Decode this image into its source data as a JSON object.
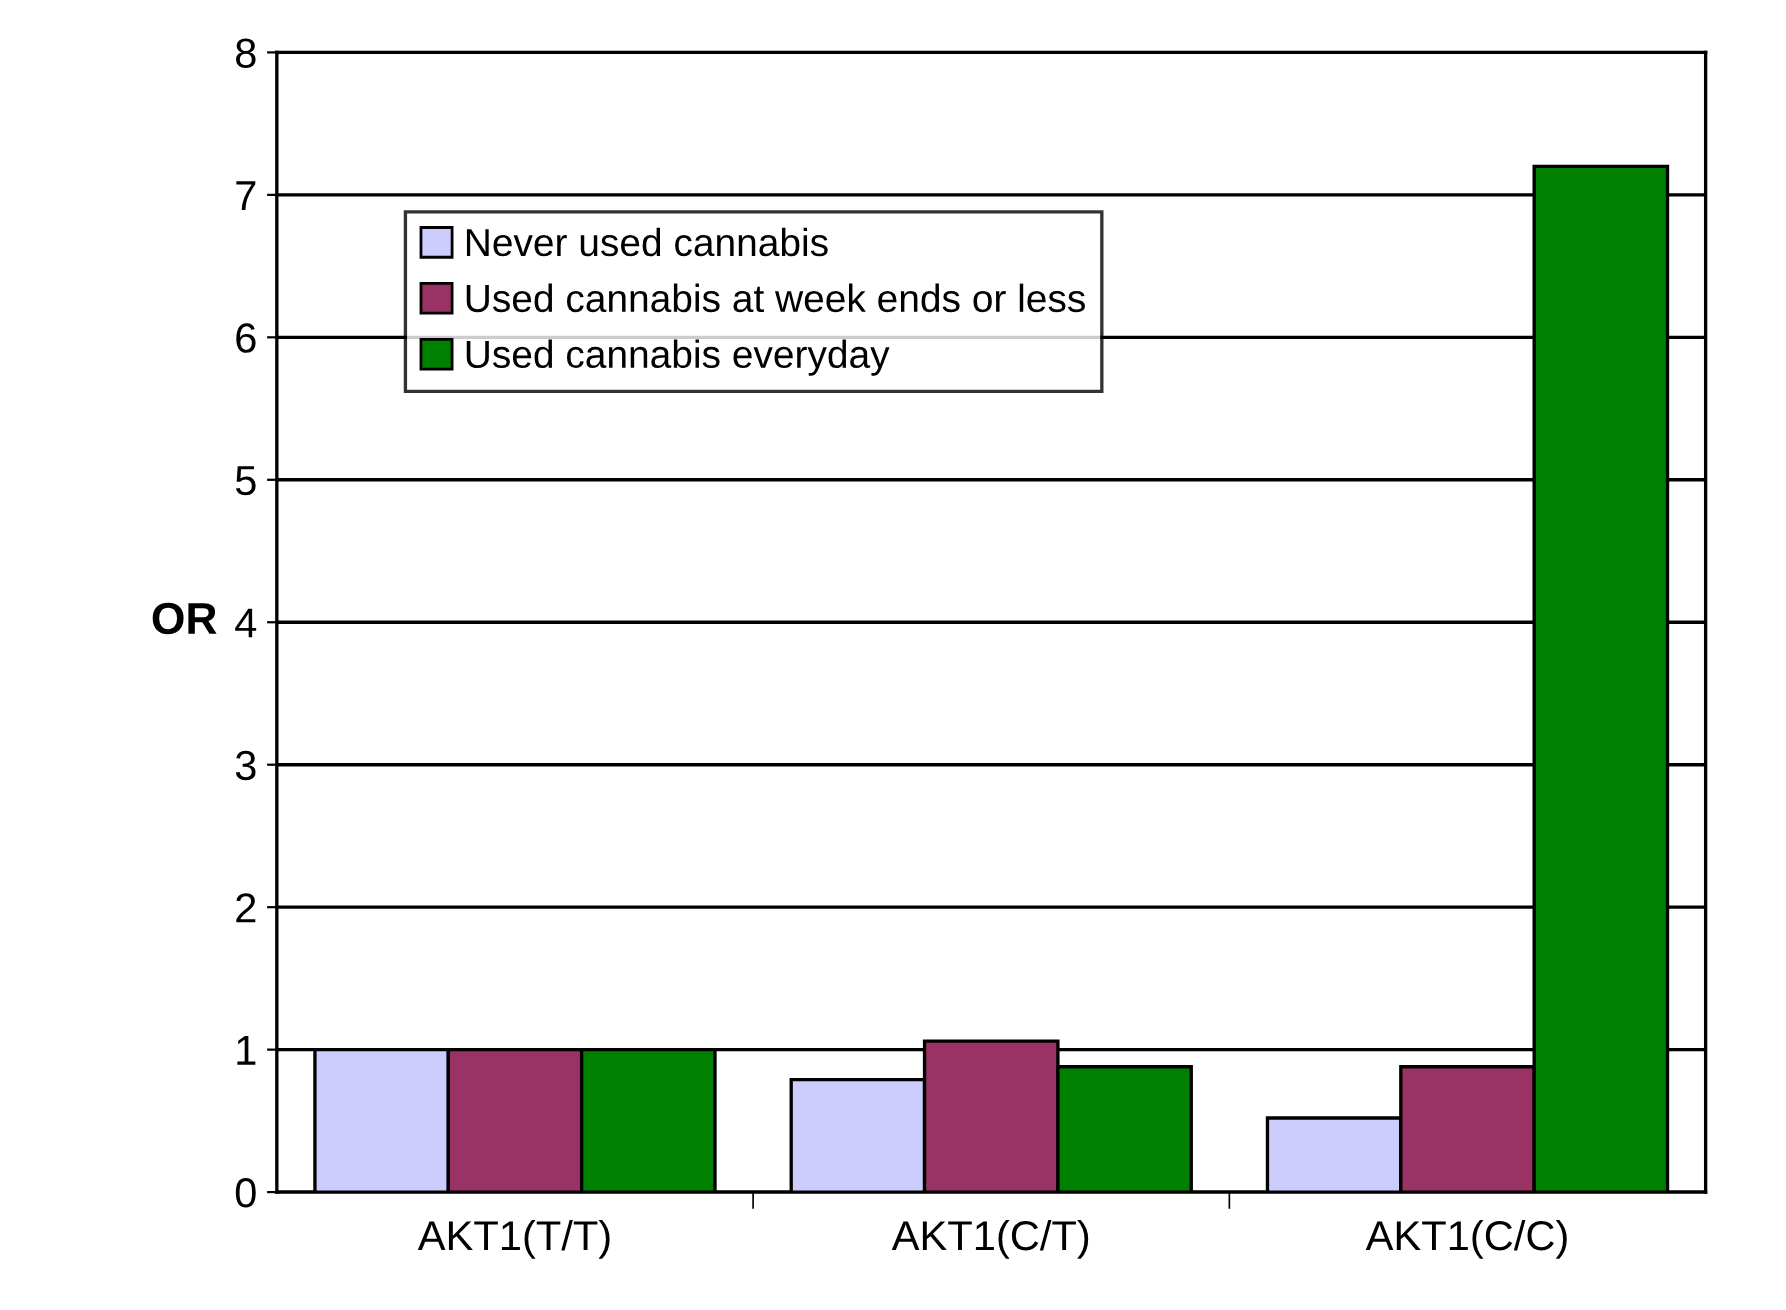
{
  "chart_data": {
    "type": "bar",
    "ylabel": "OR",
    "categories": [
      "AKT1(T/T)",
      "AKT1(C/T)",
      "AKT1(C/C)"
    ],
    "series": [
      {
        "name": "Never used cannabis",
        "color": "#ccccff",
        "values": [
          1.0,
          0.79,
          0.52
        ]
      },
      {
        "name": "Used cannabis at week ends or less",
        "color": "#993366",
        "values": [
          1.0,
          1.06,
          0.88
        ]
      },
      {
        "name": "Used cannabis everyday",
        "color": "#008000",
        "values": [
          1.0,
          0.88,
          7.2
        ]
      }
    ],
    "ylim": [
      0,
      8
    ],
    "yticks": [
      0,
      1,
      2,
      3,
      4,
      5,
      6,
      7,
      8
    ],
    "grid": "y",
    "legend": "top left"
  }
}
